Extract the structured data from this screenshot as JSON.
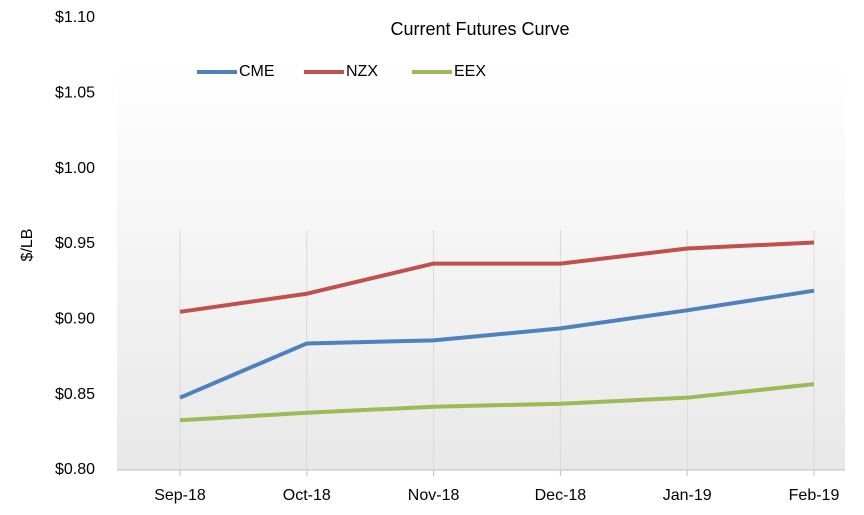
{
  "chart_data": {
    "type": "line",
    "title": "Current Futures Curve",
    "y_label": "$/LB",
    "categories": [
      "Sep-18",
      "Oct-18",
      "Nov-18",
      "Dec-18",
      "Jan-19",
      "Feb-19"
    ],
    "series": [
      {
        "name": "CME",
        "color": "#4f81bd",
        "values": [
          0.848,
          0.884,
          0.886,
          0.894,
          0.906,
          0.919
        ]
      },
      {
        "name": "NZX",
        "color": "#c0504d",
        "values": [
          0.905,
          0.917,
          0.937,
          0.937,
          0.947,
          0.951
        ]
      },
      {
        "name": "EEX",
        "color": "#9bbb59",
        "values": [
          0.833,
          0.838,
          0.842,
          0.844,
          0.848,
          0.857
        ]
      }
    ],
    "ylim": [
      0.8,
      1.1
    ],
    "yticks": [
      {
        "value": 0.8,
        "label": "$0.80"
      },
      {
        "value": 0.85,
        "label": "$0.85"
      },
      {
        "value": 0.9,
        "label": "$0.90"
      },
      {
        "value": 0.95,
        "label": "$0.95"
      },
      {
        "value": 1.0,
        "label": "$1.00"
      },
      {
        "value": 1.05,
        "label": "$1.05"
      },
      {
        "value": 1.1,
        "label": "$1.10"
      }
    ],
    "grid": true,
    "legend": "top"
  }
}
